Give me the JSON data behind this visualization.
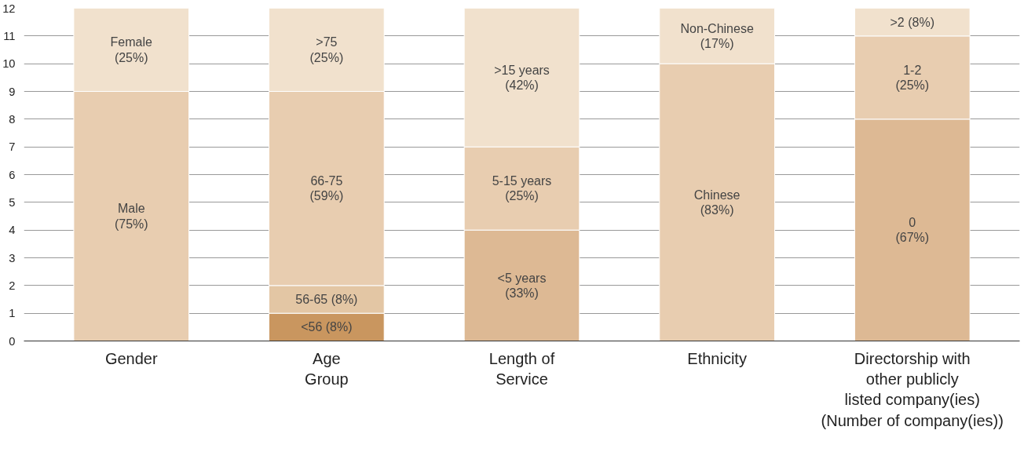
{
  "chart_data": {
    "type": "bar",
    "stacked": true,
    "categories": [
      "Gender",
      "Age\nGroup",
      "Length of\nService",
      "Ethnicity",
      "Directorship with\nother publicly\nlisted company(ies)\n(Number of company(ies))"
    ],
    "series": [
      {
        "colors": [
          "#e8cdb0",
          "#c9965f",
          "#ddb994",
          "#e8cdb0",
          "#ddb994"
        ],
        "values": [
          9,
          1,
          4,
          10,
          8
        ]
      },
      {
        "colors": [
          "#f1e1cd",
          "#e3c6a4",
          "#e8cdb0",
          "#f1e1cd",
          "#e8cdb0"
        ],
        "values": [
          3,
          1,
          3,
          2,
          3
        ]
      },
      {
        "colors": [
          null,
          "#e8cdb0",
          "#f1e1cd",
          null,
          "#f1e1cd"
        ],
        "values": [
          null,
          7,
          5,
          null,
          1
        ]
      },
      {
        "colors": [
          null,
          "#f1e1cd",
          null,
          null,
          null
        ],
        "values": [
          null,
          3,
          null,
          null,
          null
        ]
      }
    ],
    "annotations": [
      "Male\n(75%)",
      "Female\n(25%)",
      "<56 (8%)",
      "56-65 (8%)",
      "66-75\n(59%)",
      ">75\n(25%)",
      "<5 years\n(33%)",
      "5-15 years\n(25%)",
      ">15 years\n(42%)",
      "Chinese\n(83%)",
      "Non-Chinese\n(17%)",
      "0\n(67%)",
      "1-2\n(25%)",
      ">2 (8%)"
    ],
    "ylim": [
      0,
      12
    ],
    "yticks": [
      0,
      1,
      2,
      3,
      4,
      5,
      6,
      7,
      8,
      9,
      10,
      11,
      12
    ],
    "grid": "y"
  }
}
